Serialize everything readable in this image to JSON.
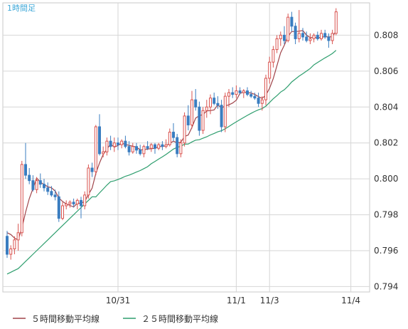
{
  "timeframe_label": "1時間足",
  "chart_data": {
    "type": "candlestick",
    "ylim": [
      0.7937,
      0.8098
    ],
    "y_ticks": [
      "0.794",
      "0.796",
      "0.798",
      "0.800",
      "0.802",
      "0.804",
      "0.806",
      "0.808"
    ],
    "x_ticks": [
      {
        "index": 30,
        "label": "10/31"
      },
      {
        "index": 62,
        "label": "11/1"
      },
      {
        "index": 71,
        "label": "11/3"
      },
      {
        "index": 93,
        "label": "11/4"
      }
    ],
    "grid": true,
    "colors": {
      "up": "#d9534f",
      "down": "#3a7dc0",
      "ma5": "#a0444a",
      "ma25": "#2e9e6e",
      "timeframe_label": "#3fa8d8"
    },
    "candles": [
      [
        0.7968,
        0.7971,
        0.7956,
        0.7958
      ],
      [
        0.7958,
        0.7963,
        0.7955,
        0.7961
      ],
      [
        0.7961,
        0.7968,
        0.7958,
        0.7966
      ],
      [
        0.7966,
        0.7975,
        0.796,
        0.797
      ],
      [
        0.797,
        0.801,
        0.7968,
        0.8008
      ],
      [
        0.8008,
        0.802,
        0.8,
        0.8002
      ],
      [
        0.8002,
        0.8006,
        0.7997,
        0.7999
      ],
      [
        0.7999,
        0.8002,
        0.7993,
        0.7994
      ],
      [
        0.7994,
        0.8001,
        0.7992,
        0.7999
      ],
      [
        0.7999,
        0.8003,
        0.7995,
        0.7997
      ],
      [
        0.7997,
        0.8,
        0.7993,
        0.7995
      ],
      [
        0.7995,
        0.7998,
        0.7991,
        0.7993
      ],
      [
        0.7993,
        0.7996,
        0.799,
        0.7991
      ],
      [
        0.7991,
        0.7994,
        0.7988,
        0.799
      ],
      [
        0.799,
        0.7993,
        0.7976,
        0.7978
      ],
      [
        0.7978,
        0.7987,
        0.7977,
        0.7985
      ],
      [
        0.7985,
        0.7988,
        0.7983,
        0.7986
      ],
      [
        0.7986,
        0.7988,
        0.7984,
        0.7987
      ],
      [
        0.7987,
        0.7989,
        0.7984,
        0.7986
      ],
      [
        0.7986,
        0.7989,
        0.7983,
        0.7988
      ],
      [
        0.7988,
        0.799,
        0.7978,
        0.7985
      ],
      [
        0.7985,
        0.7993,
        0.7983,
        0.7991
      ],
      [
        0.7991,
        0.8008,
        0.7989,
        0.8006
      ],
      [
        0.8006,
        0.8009,
        0.8001,
        0.8004
      ],
      [
        0.8004,
        0.803,
        0.8002,
        0.8029
      ],
      [
        0.8029,
        0.8036,
        0.8013,
        0.8014
      ],
      [
        0.8014,
        0.8018,
        0.8012,
        0.8015
      ],
      [
        0.8015,
        0.8023,
        0.8013,
        0.8021
      ],
      [
        0.8021,
        0.8024,
        0.8016,
        0.8018
      ],
      [
        0.8018,
        0.8023,
        0.8015,
        0.802
      ],
      [
        0.802,
        0.8023,
        0.8016,
        0.8019
      ],
      [
        0.8019,
        0.8022,
        0.8017,
        0.8021
      ],
      [
        0.8021,
        0.8024,
        0.8017,
        0.8018
      ],
      [
        0.8018,
        0.8021,
        0.8013,
        0.8015
      ],
      [
        0.8015,
        0.802,
        0.8014,
        0.8018
      ],
      [
        0.8018,
        0.802,
        0.8014,
        0.8016
      ],
      [
        0.8016,
        0.8019,
        0.8013,
        0.8014
      ],
      [
        0.8014,
        0.8019,
        0.8012,
        0.8018
      ],
      [
        0.8018,
        0.8021,
        0.8016,
        0.8017
      ],
      [
        0.8017,
        0.802,
        0.8015,
        0.8019
      ],
      [
        0.8019,
        0.802,
        0.8014,
        0.8017
      ],
      [
        0.8017,
        0.802,
        0.8016,
        0.8019
      ],
      [
        0.8019,
        0.8021,
        0.8016,
        0.8018
      ],
      [
        0.8018,
        0.8022,
        0.8017,
        0.8019
      ],
      [
        0.8019,
        0.8028,
        0.8018,
        0.8026
      ],
      [
        0.8026,
        0.8031,
        0.8021,
        0.8023
      ],
      [
        0.8023,
        0.8025,
        0.8012,
        0.8014
      ],
      [
        0.8014,
        0.8022,
        0.8012,
        0.802
      ],
      [
        0.802,
        0.8037,
        0.8018,
        0.8035
      ],
      [
        0.8035,
        0.8041,
        0.8027,
        0.803
      ],
      [
        0.803,
        0.8049,
        0.8028,
        0.8044
      ],
      [
        0.8044,
        0.805,
        0.8038,
        0.804
      ],
      [
        0.804,
        0.8043,
        0.8024,
        0.8027
      ],
      [
        0.8027,
        0.804,
        0.8025,
        0.8038
      ],
      [
        0.8038,
        0.8044,
        0.8034,
        0.804
      ],
      [
        0.804,
        0.8047,
        0.8036,
        0.8045
      ],
      [
        0.8045,
        0.8048,
        0.8041,
        0.8042
      ],
      [
        0.8042,
        0.8046,
        0.8039,
        0.8041
      ],
      [
        0.8041,
        0.8044,
        0.8026,
        0.8029
      ],
      [
        0.8029,
        0.8048,
        0.8026,
        0.8046
      ],
      [
        0.8046,
        0.805,
        0.804,
        0.8048
      ],
      [
        0.8048,
        0.8051,
        0.8045,
        0.8047
      ],
      [
        0.8047,
        0.8052,
        0.8045,
        0.8049
      ],
      [
        0.8049,
        0.8051,
        0.8047,
        0.8048
      ],
      [
        0.8048,
        0.805,
        0.8045,
        0.8049
      ],
      [
        0.8049,
        0.8051,
        0.8046,
        0.8047
      ],
      [
        0.8047,
        0.8049,
        0.8045,
        0.8046
      ],
      [
        0.8046,
        0.8048,
        0.8044,
        0.8045
      ],
      [
        0.8045,
        0.8048,
        0.804,
        0.8042
      ],
      [
        0.8042,
        0.8046,
        0.8038,
        0.8044
      ],
      [
        0.8044,
        0.8058,
        0.8041,
        0.8056
      ],
      [
        0.8056,
        0.8068,
        0.8053,
        0.8065
      ],
      [
        0.8065,
        0.8074,
        0.8062,
        0.8072
      ],
      [
        0.8072,
        0.808,
        0.807,
        0.8078
      ],
      [
        0.8078,
        0.8082,
        0.8074,
        0.808
      ],
      [
        0.808,
        0.8085,
        0.8075,
        0.8077
      ],
      [
        0.8077,
        0.8092,
        0.8076,
        0.809
      ],
      [
        0.809,
        0.8093,
        0.8082,
        0.8085
      ],
      [
        0.8085,
        0.8087,
        0.8075,
        0.8078
      ],
      [
        0.8078,
        0.8094,
        0.8076,
        0.8081
      ],
      [
        0.8081,
        0.8084,
        0.8077,
        0.8079
      ],
      [
        0.8079,
        0.8082,
        0.8076,
        0.8077
      ],
      [
        0.8077,
        0.8081,
        0.8075,
        0.8078
      ],
      [
        0.8078,
        0.8081,
        0.8076,
        0.808
      ],
      [
        0.808,
        0.8082,
        0.8077,
        0.8078
      ],
      [
        0.8078,
        0.8083,
        0.8077,
        0.8081
      ],
      [
        0.8081,
        0.8083,
        0.8078,
        0.8079
      ],
      [
        0.8079,
        0.8081,
        0.8073,
        0.8077
      ],
      [
        0.8077,
        0.8083,
        0.8075,
        0.8081
      ],
      [
        0.8081,
        0.8095,
        0.808,
        0.8093
      ]
    ],
    "series": [
      {
        "name": "5時間移動平均線",
        "kind": "sma",
        "period": 5,
        "start": [
          0.797,
          0.7969,
          0.7967,
          0.7966
        ]
      },
      {
        "name": "25時間移動平均線",
        "kind": "sma",
        "period": 25,
        "start": [
          0.7947,
          0.7948,
          0.7949,
          0.795,
          0.7952,
          0.7954,
          0.7956,
          0.7958,
          0.796,
          0.7962,
          0.7964,
          0.7966,
          0.7968,
          0.797,
          0.7972,
          0.7974,
          0.7976,
          0.7978,
          0.798,
          0.7982,
          0.7984,
          0.7986,
          0.7988,
          0.799
        ]
      }
    ]
  },
  "legend": [
    {
      "label": "５時間移動平均線"
    },
    {
      "label": "２５時間移動平均線"
    }
  ]
}
